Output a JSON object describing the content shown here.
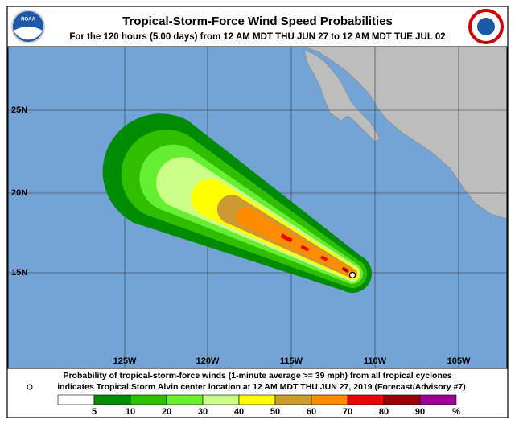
{
  "header": {
    "title": "Tropical-Storm-Force Wind Speed Probabilities",
    "subtitle": "For the 120 hours (5.00 days) from 12 AM MDT THU JUN 27 to 12 AM MDT TUE JUL 02",
    "left_logo": "NOAA"
  },
  "map": {
    "lat_labels": [
      "25N",
      "20N",
      "15N"
    ],
    "lon_labels": [
      "125W",
      "120W",
      "115W",
      "110W",
      "105W"
    ]
  },
  "footer": {
    "line1": "Probability of tropical-storm-force winds (1-minute average >= 39 mph) from all tropical cyclones",
    "line2": "indicates Tropical Storm Alvin center location at 12 AM MDT THU JUN 27, 2019 (Forecast/Advisory #7)"
  },
  "legend": {
    "colors": [
      "#ffffff",
      "#008c00",
      "#2fbf00",
      "#66ee33",
      "#ccff88",
      "#ffff00",
      "#cc9933",
      "#ff8c00",
      "#ee0000",
      "#990000",
      "#990099"
    ],
    "labels": [
      5,
      10,
      20,
      30,
      40,
      50,
      60,
      70,
      80,
      90,
      "%"
    ]
  }
}
